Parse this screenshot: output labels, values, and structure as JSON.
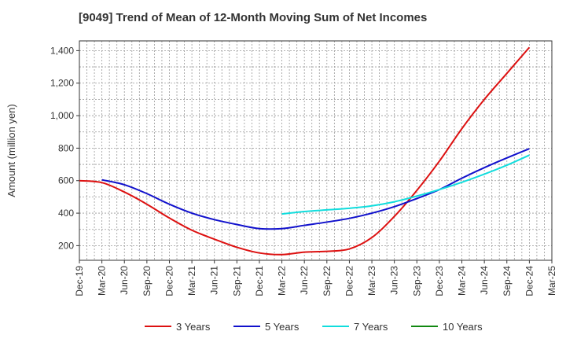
{
  "chart_data": {
    "type": "line",
    "title": "[9049]  Trend of Mean of 12-Month Moving Sum of Net Incomes",
    "ylabel": "Amount (million yen)",
    "xlabel": "",
    "ylim": [
      110,
      1460
    ],
    "y_ticks": [
      200,
      400,
      600,
      800,
      1000,
      1200,
      1400
    ],
    "y_tick_labels": [
      "200",
      "400",
      "600",
      "800",
      "1,000",
      "1,200",
      "1,400"
    ],
    "x_tick_labels": [
      "Dec-19",
      "Mar-20",
      "Jun-20",
      "Sep-20",
      "Dec-20",
      "Mar-21",
      "Jun-21",
      "Sep-21",
      "Dec-21",
      "Mar-22",
      "Jun-22",
      "Sep-22",
      "Dec-22",
      "Mar-23",
      "Jun-23",
      "Sep-23",
      "Dec-23",
      "Mar-24",
      "Jun-24",
      "Sep-24",
      "Dec-24",
      "Mar-25"
    ],
    "grid": true,
    "legend_position": "bottom",
    "series": [
      {
        "name": "3 Years",
        "color": "#dd1111",
        "points": [
          [
            "Dec-19",
            600
          ],
          [
            "Mar-20",
            588
          ],
          [
            "Jun-20",
            530
          ],
          [
            "Sep-20",
            455
          ],
          [
            "Dec-20",
            370
          ],
          [
            "Mar-21",
            295
          ],
          [
            "Jun-21",
            240
          ],
          [
            "Sep-21",
            190
          ],
          [
            "Dec-21",
            155
          ],
          [
            "Mar-22",
            145
          ],
          [
            "Jun-22",
            160
          ],
          [
            "Sep-22",
            165
          ],
          [
            "Dec-22",
            180
          ],
          [
            "Mar-23",
            250
          ],
          [
            "Jun-23",
            380
          ],
          [
            "Sep-23",
            540
          ],
          [
            "Dec-23",
            720
          ],
          [
            "Mar-24",
            920
          ],
          [
            "Jun-24",
            1100
          ],
          [
            "Sep-24",
            1260
          ],
          [
            "Dec-24",
            1420
          ]
        ]
      },
      {
        "name": "5 Years",
        "color": "#1111cc",
        "points": [
          [
            "Mar-20",
            605
          ],
          [
            "Jun-20",
            575
          ],
          [
            "Sep-20",
            520
          ],
          [
            "Dec-20",
            455
          ],
          [
            "Mar-21",
            400
          ],
          [
            "Jun-21",
            360
          ],
          [
            "Sep-21",
            330
          ],
          [
            "Dec-21",
            305
          ],
          [
            "Mar-22",
            305
          ],
          [
            "Jun-22",
            325
          ],
          [
            "Sep-22",
            345
          ],
          [
            "Dec-22",
            368
          ],
          [
            "Mar-23",
            400
          ],
          [
            "Jun-23",
            440
          ],
          [
            "Sep-23",
            490
          ],
          [
            "Dec-23",
            545
          ],
          [
            "Mar-24",
            615
          ],
          [
            "Jun-24",
            680
          ],
          [
            "Sep-24",
            740
          ],
          [
            "Dec-24",
            797
          ]
        ]
      },
      {
        "name": "7 Years",
        "color": "#11dddd",
        "points": [
          [
            "Mar-22",
            395
          ],
          [
            "Jun-22",
            410
          ],
          [
            "Sep-22",
            420
          ],
          [
            "Dec-22",
            430
          ],
          [
            "Mar-23",
            445
          ],
          [
            "Jun-23",
            470
          ],
          [
            "Sep-23",
            505
          ],
          [
            "Dec-23",
            545
          ],
          [
            "Mar-24",
            590
          ],
          [
            "Jun-24",
            640
          ],
          [
            "Sep-24",
            695
          ],
          [
            "Dec-24",
            757
          ]
        ]
      },
      {
        "name": "10 Years",
        "color": "#118811",
        "points": []
      }
    ]
  }
}
